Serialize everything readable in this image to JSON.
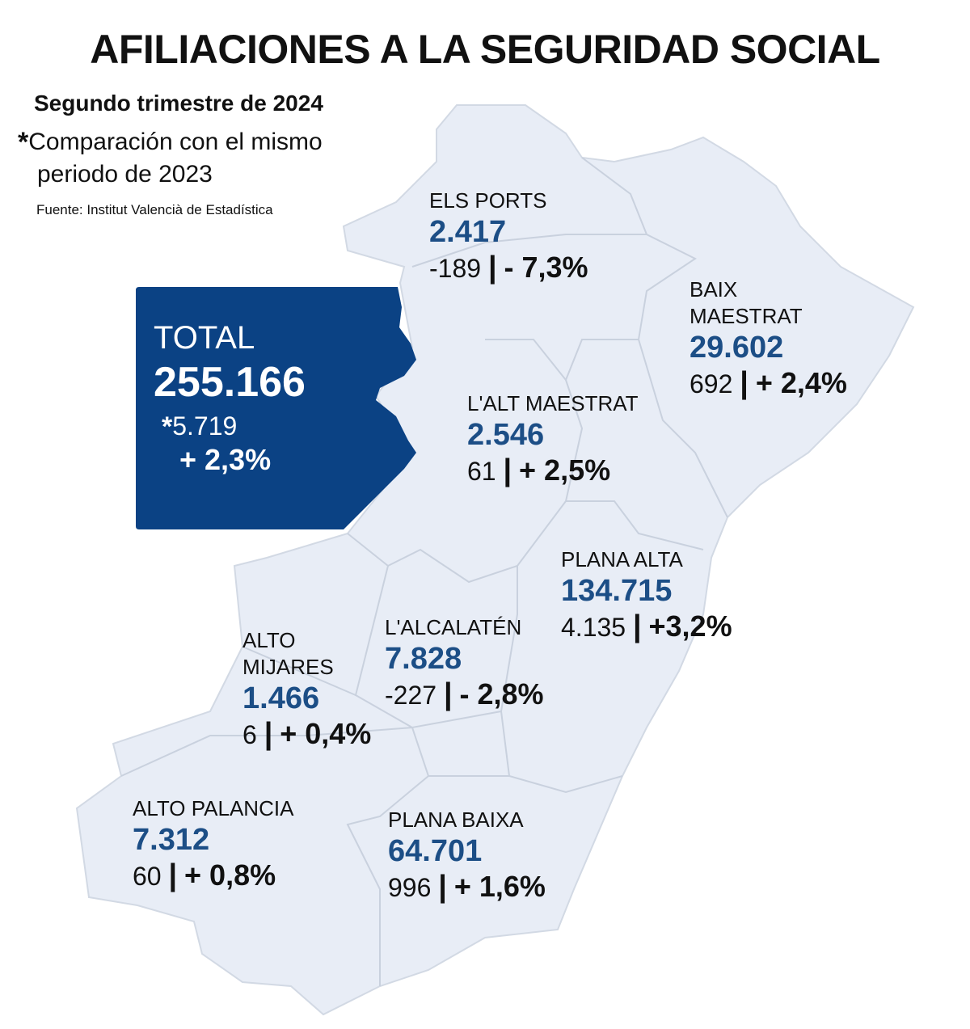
{
  "title": "AFILIACIONES A LA SEGURIDAD SOCIAL",
  "subtitle": "Segundo trimestre de 2024",
  "note": {
    "asterisk": "*",
    "line1": "Comparación con el mismo",
    "line2": "periodo de 2023"
  },
  "source": "Fuente: Institut Valencià de Estadística",
  "colors": {
    "map_fill": "#e8edf6",
    "map_border": "#c9d1de",
    "total_box": "#0b4284",
    "number": "#1c4e86"
  },
  "total": {
    "label": "TOTAL",
    "value": "255.166",
    "asterisk": "*",
    "diff": "5.719",
    "pct": "+ 2,3%"
  },
  "regions": [
    {
      "name": "ELS PORTS",
      "value": "2.417",
      "diff": "-189",
      "separator": "|",
      "pct": "- 7,3%"
    },
    {
      "name": "BAIX MAESTRAT",
      "value": "29.602",
      "diff": "692",
      "separator": "|",
      "pct": "+ 2,4%"
    },
    {
      "name": "L'ALT MAESTRAT",
      "value": "2.546",
      "diff": "61",
      "separator": "|",
      "pct": "+ 2,5%"
    },
    {
      "name": "PLANA ALTA",
      "value": "134.715",
      "diff": "4.135",
      "separator": "|",
      "pct": "+3,2%"
    },
    {
      "name": "L'ALCALATÉN",
      "value": "7.828",
      "diff": "-227",
      "separator": "|",
      "pct": "- 2,8%"
    },
    {
      "name": "ALTO MIJARES",
      "value": "1.466",
      "diff": "6",
      "separator": "|",
      "pct": "+ 0,4%"
    },
    {
      "name": "ALTO PALANCIA",
      "value": "7.312",
      "diff": "60",
      "separator": "|",
      "pct": "+ 0,8%"
    },
    {
      "name": "PLANA BAIXA",
      "value": "64.701",
      "diff": "996",
      "separator": "|",
      "pct": "+ 1,6%"
    }
  ]
}
